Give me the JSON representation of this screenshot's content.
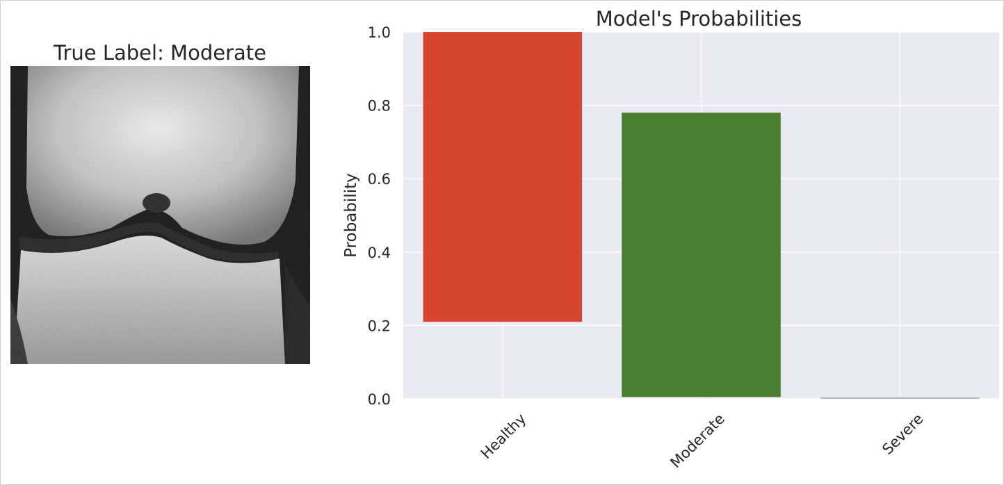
{
  "xray_panel": {
    "title": "True Label: Moderate"
  },
  "chart_data": {
    "type": "bar",
    "title": "Model's Probabilities",
    "xlabel": "",
    "ylabel": "Probability",
    "categories": [
      "Healthy",
      "Moderate",
      "Severe"
    ],
    "bars": [
      {
        "category": "Healthy",
        "bottom": 0.21,
        "top": 1.0,
        "color": "#d6452f"
      },
      {
        "category": "Moderate",
        "bottom": 0.005,
        "top": 0.78,
        "color": "#4a7d32"
      },
      {
        "category": "Severe",
        "bottom": 0.0,
        "top": 0.005,
        "color": "#b8c4d4"
      }
    ],
    "ylim": [
      0.0,
      1.0
    ],
    "yticks": [
      "0.0",
      "0.2",
      "0.4",
      "0.6",
      "0.8",
      "1.0"
    ],
    "grid": true,
    "background": "#eaeaf2",
    "legend": "none"
  }
}
